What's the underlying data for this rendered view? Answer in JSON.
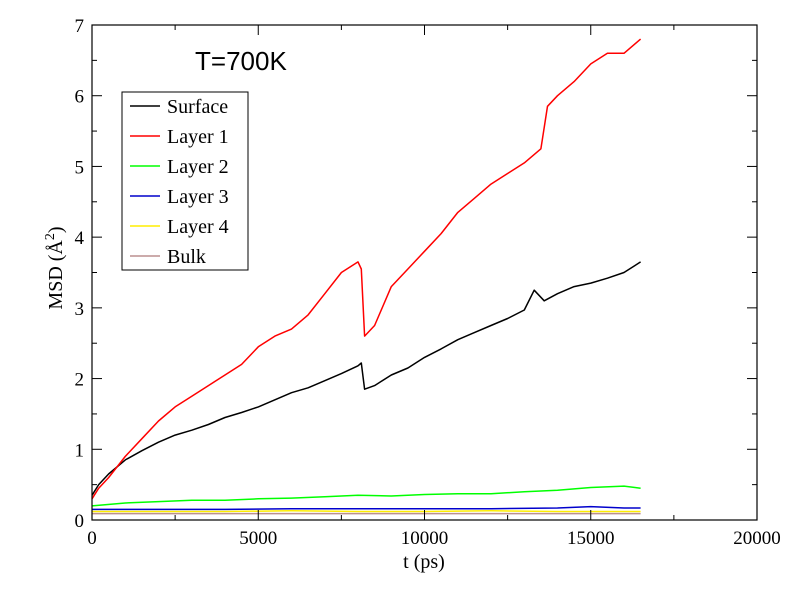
{
  "chart_data": {
    "type": "line",
    "annotation": "T=700K",
    "xlabel": "t (ps)",
    "ylabel_main": "MSD (",
    "ylabel_unit": "Å",
    "ylabel_exp": "2",
    "ylabel_close": ")",
    "xlim": [
      0,
      20000
    ],
    "ylim": [
      0,
      7
    ],
    "x_ticks": [
      0,
      5000,
      10000,
      15000,
      20000
    ],
    "y_ticks": [
      0,
      1,
      2,
      3,
      4,
      5,
      6,
      7
    ],
    "x_tick_labels": [
      "0",
      "5000",
      "10000",
      "15000",
      "20000"
    ],
    "y_tick_labels": [
      "0",
      "1",
      "2",
      "3",
      "4",
      "5",
      "6",
      "7"
    ],
    "legend_position": "top-left",
    "series": [
      {
        "name": "Surface",
        "color": "#000000",
        "x": [
          0,
          200,
          500,
          1000,
          1500,
          2000,
          2500,
          3000,
          3500,
          4000,
          4500,
          5000,
          5500,
          6000,
          6500,
          7000,
          7500,
          8000,
          8100,
          8200,
          8500,
          9000,
          9500,
          10000,
          10500,
          11000,
          11500,
          12000,
          12500,
          13000,
          13300,
          13600,
          14000,
          14500,
          15000,
          15500,
          16000,
          16500
        ],
        "y": [
          0.35,
          0.5,
          0.65,
          0.85,
          0.98,
          1.1,
          1.2,
          1.27,
          1.35,
          1.45,
          1.52,
          1.6,
          1.7,
          1.8,
          1.87,
          1.97,
          2.07,
          2.18,
          2.22,
          1.85,
          1.9,
          2.05,
          2.15,
          2.3,
          2.42,
          2.55,
          2.65,
          2.75,
          2.85,
          2.97,
          3.25,
          3.1,
          3.2,
          3.3,
          3.35,
          3.42,
          3.5,
          3.65
        ]
      },
      {
        "name": "Layer 1",
        "color": "#ff0000",
        "x": [
          0,
          200,
          500,
          1000,
          1500,
          2000,
          2500,
          3000,
          3500,
          4000,
          4500,
          5000,
          5500,
          6000,
          6500,
          7000,
          7500,
          8000,
          8100,
          8200,
          8500,
          9000,
          9500,
          10000,
          10500,
          11000,
          11500,
          12000,
          12500,
          13000,
          13500,
          13700,
          14000,
          14500,
          15000,
          15500,
          16000,
          16500
        ],
        "y": [
          0.3,
          0.45,
          0.6,
          0.9,
          1.15,
          1.4,
          1.6,
          1.75,
          1.9,
          2.05,
          2.2,
          2.45,
          2.6,
          2.7,
          2.9,
          3.2,
          3.5,
          3.65,
          3.55,
          2.6,
          2.75,
          3.3,
          3.55,
          3.8,
          4.05,
          4.35,
          4.55,
          4.75,
          4.9,
          5.05,
          5.25,
          5.85,
          6.0,
          6.2,
          6.45,
          6.6,
          6.6,
          6.8
        ]
      },
      {
        "name": "Layer 2",
        "color": "#00ff00",
        "x": [
          0,
          1000,
          2000,
          3000,
          4000,
          5000,
          6000,
          7000,
          8000,
          9000,
          10000,
          11000,
          12000,
          13000,
          14000,
          15000,
          16000,
          16500
        ],
        "y": [
          0.2,
          0.24,
          0.26,
          0.28,
          0.28,
          0.3,
          0.31,
          0.33,
          0.35,
          0.34,
          0.36,
          0.37,
          0.37,
          0.4,
          0.42,
          0.46,
          0.48,
          0.45
        ]
      },
      {
        "name": "Layer 3",
        "color": "#0000cc",
        "x": [
          0,
          2000,
          4000,
          6000,
          8000,
          10000,
          12000,
          14000,
          15000,
          16000,
          16500
        ],
        "y": [
          0.15,
          0.15,
          0.15,
          0.16,
          0.16,
          0.16,
          0.16,
          0.17,
          0.19,
          0.17,
          0.17
        ]
      },
      {
        "name": "Layer 4",
        "color": "#ffee00",
        "x": [
          0,
          2000,
          4000,
          6000,
          8000,
          10000,
          12000,
          14000,
          16000,
          16500
        ],
        "y": [
          0.12,
          0.12,
          0.12,
          0.13,
          0.12,
          0.12,
          0.13,
          0.12,
          0.12,
          0.12
        ]
      },
      {
        "name": "Bulk",
        "color": "#bc8f8f",
        "x": [
          0,
          2000,
          4000,
          6000,
          8000,
          10000,
          12000,
          14000,
          16000,
          16500
        ],
        "y": [
          0.09,
          0.09,
          0.09,
          0.09,
          0.09,
          0.09,
          0.09,
          0.09,
          0.09,
          0.09
        ]
      }
    ]
  }
}
